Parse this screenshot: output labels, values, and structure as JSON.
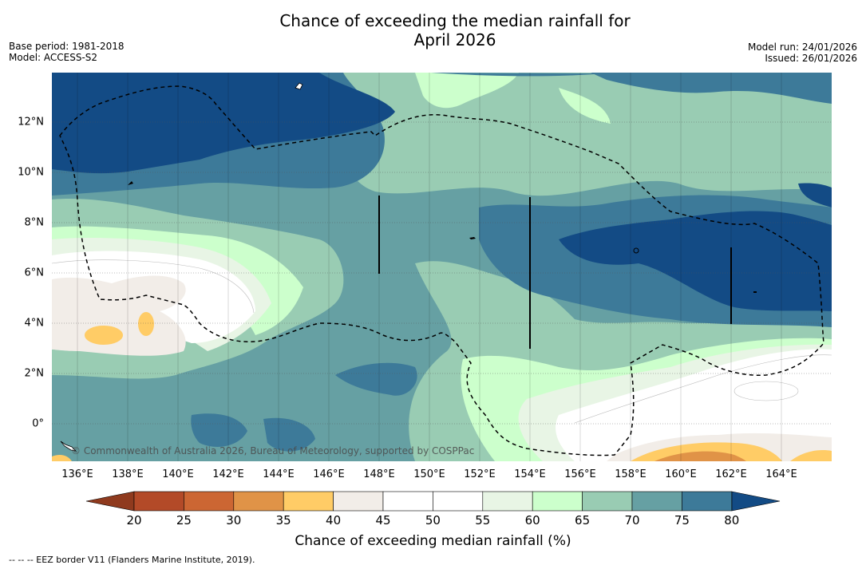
{
  "title": {
    "line1": "Chance of exceeding the median rainfall for",
    "line2": "April 2026"
  },
  "meta_left": {
    "base_period": "Base period: 1981-2018",
    "model": "Model: ACCESS-S2"
  },
  "meta_right": {
    "model_run": "Model run: 24/01/2026",
    "issued": "Issued: 26/01/2026"
  },
  "map": {
    "x_labels": [
      "136°E",
      "138°E",
      "140°E",
      "142°E",
      "144°E",
      "146°E",
      "148°E",
      "150°E",
      "152°E",
      "154°E",
      "156°E",
      "158°E",
      "160°E",
      "162°E",
      "164°E"
    ],
    "y_labels": [
      "12°N",
      "10°N",
      "8°N",
      "6°N",
      "4°N",
      "2°N",
      "0°"
    ],
    "credit": "© Commonwealth of Australia 2026, Bureau of Meteorology, supported by COSPPac"
  },
  "colorbar": {
    "ticks": [
      "20",
      "25",
      "30",
      "35",
      "40",
      "45",
      "50",
      "55",
      "60",
      "65",
      "70",
      "75",
      "80"
    ],
    "colors": {
      "c20": "#8f3a1e",
      "c25": "#b34a28",
      "c30": "#cc6633",
      "c35": "#e09347",
      "c40": "#ffcc66",
      "c45": "#f2ede8",
      "c50": "#ffffff",
      "c55": "#ffffff",
      "c60": "#e8f5e5",
      "c65": "#ccffcc",
      "c70": "#99ccb3",
      "c75": "#66a0a3",
      "c80": "#3d7a99",
      "c85": "#134b85"
    },
    "label": "Chance of exceeding median rainfall (%)"
  },
  "footer": "--  --  -- EEZ border V11 (Flanders Marine Institute, 2019)."
}
